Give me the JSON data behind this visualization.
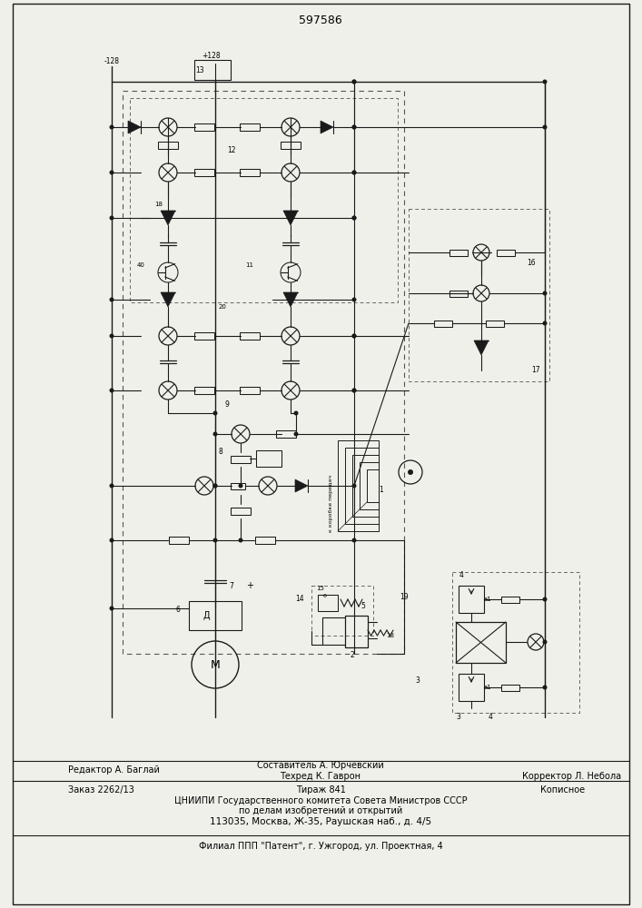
{
  "title": "597586",
  "bg_color": "#f0f0eb",
  "lc": "#1a1a1a",
  "footer": {
    "line1_left": "Редактор А. Баглай",
    "line1_center_top": "Составитель А. Юрчевский",
    "line1_center_bot": "Техред К. Гаврон",
    "line1_right": "Корректор Л. Небола",
    "line2_left": "Заказ 2262/13",
    "line2_center": "Тираж 841",
    "line2_right": "Кописное",
    "line3": "ЦНИИПИ Государственного комитета Совета Министров СССР",
    "line4": "по делам изобретений и открытий",
    "line5": "113035, Москва, Ж-35, Раушская наб., д. 4/5",
    "line6": "Филиал ППП \"Патент\", г. Ужгород, ул. Проектная, 4"
  }
}
